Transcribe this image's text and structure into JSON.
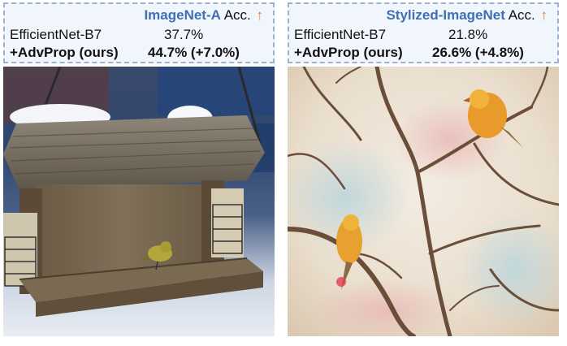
{
  "panels": [
    {
      "dataset": "ImageNet-A",
      "metric": "Acc.",
      "rows": [
        {
          "model": "EfficientNet-B7",
          "value": "37.7%"
        },
        {
          "model": "+AdvProp (ours)",
          "value": "44.7% (+7.0%)"
        }
      ]
    },
    {
      "dataset": "Stylized-ImageNet",
      "metric": "Acc.",
      "rows": [
        {
          "model": "EfficientNet-B7",
          "value": "21.8%"
        },
        {
          "model": "+AdvProp (ours)",
          "value": "26.6% (+4.8%)"
        }
      ]
    }
  ],
  "colors": {
    "dataset_text": "#3f6fb5",
    "arrow": "#d77a33",
    "box_border": "#9bb3d1",
    "box_fill": "#f1f6fc"
  },
  "icons": {
    "improvement": "up-arrow-icon"
  }
}
